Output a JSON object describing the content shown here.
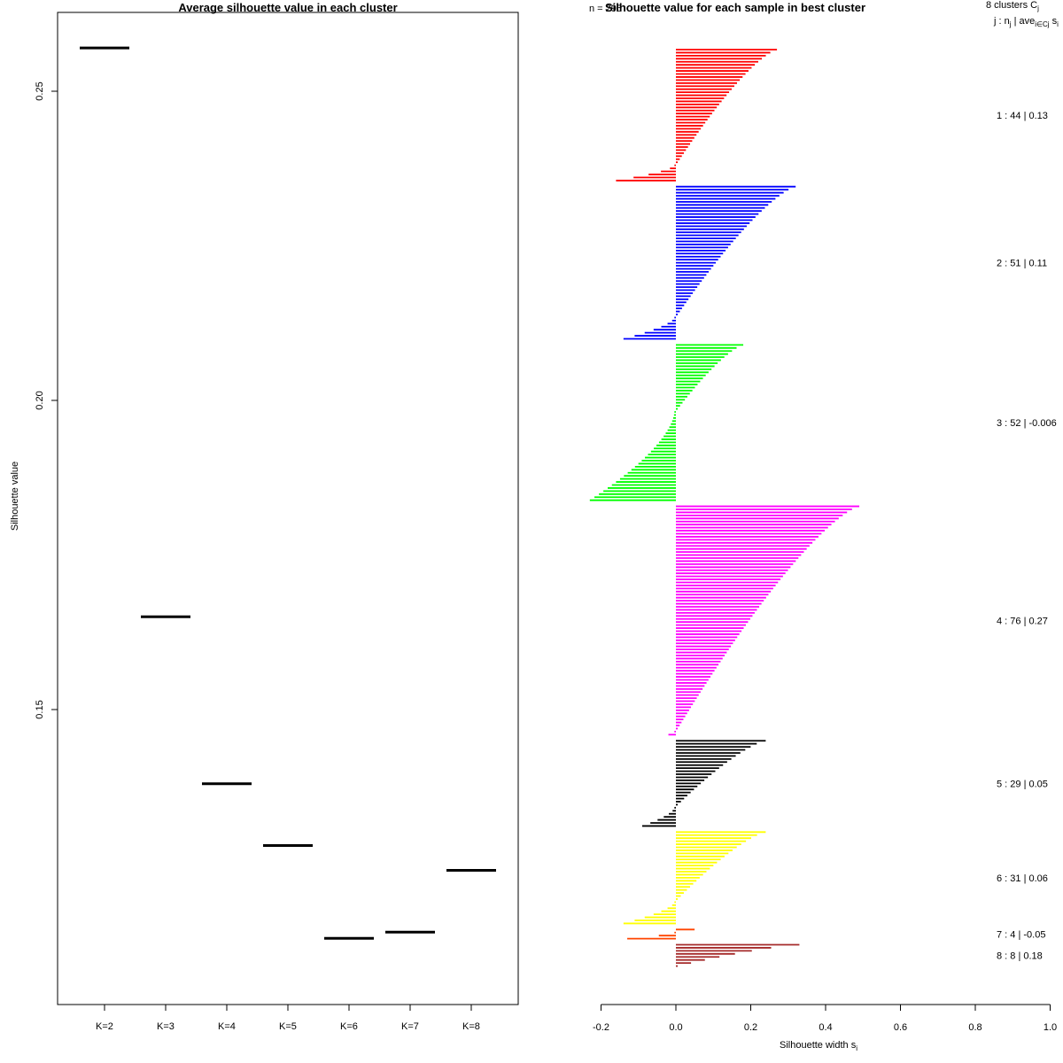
{
  "chart_data": [
    {
      "type": "line",
      "title": "Average silhouette value in each cluster",
      "xlabel": "",
      "ylabel": "Silhouette value",
      "categories": [
        "K=2",
        "K=3",
        "K=4",
        "K=5",
        "K=6",
        "K=7",
        "K=8"
      ],
      "values": [
        0.257,
        0.165,
        0.138,
        0.128,
        0.113,
        0.114,
        0.124
      ],
      "y_ticks": [
        "0.15",
        "0.20",
        "0.25"
      ],
      "ylim": [
        0.108,
        0.263
      ]
    },
    {
      "type": "bar",
      "orientation": "horizontal",
      "title": "Silhouette value for each sample in best cluster",
      "overlap_text": "n = 295",
      "xlabel": "Silhouette width s",
      "xlabel_sub": "i",
      "xlim": [
        -0.2,
        1.0
      ],
      "x_ticks": [
        "-0.2",
        "0.0",
        "0.2",
        "0.4",
        "0.6",
        "0.8",
        "1.0"
      ],
      "legend_header": {
        "line1_text": "8  clusters  C",
        "line1_sub": "j",
        "line2_parts": [
          "j :  n",
          "j",
          " | ave",
          "i∈Cj",
          "  s",
          "i"
        ]
      },
      "clusters": [
        {
          "id": 1,
          "n": 44,
          "avg_text": "0.13",
          "label": "1 :  44  |  0.13",
          "color": "#ff0000",
          "max": 0.27,
          "min": -0.16,
          "neg": 6
        },
        {
          "id": 2,
          "n": 51,
          "avg_text": "0.11",
          "label": "2 :  51  |  0.11",
          "color": "#0000ff",
          "max": 0.32,
          "min": -0.14,
          "neg": 8
        },
        {
          "id": 3,
          "n": 52,
          "avg_text": "-0.006",
          "label": "3 :  52  |  -0.006",
          "color": "#00ff00",
          "max": 0.18,
          "min": -0.23,
          "neg": 30
        },
        {
          "id": 4,
          "n": 76,
          "avg_text": "0.27",
          "label": "4 :  76  |  0.27",
          "color": "#ff00ff",
          "max": 0.49,
          "min": -0.02,
          "neg": 2
        },
        {
          "id": 5,
          "n": 29,
          "avg_text": "0.05",
          "label": "5 :  29  |  0.05",
          "color": "#000000",
          "max": 0.24,
          "min": -0.09,
          "neg": 7
        },
        {
          "id": 6,
          "n": 31,
          "avg_text": "0.06",
          "label": "6 :  31  |  0.06",
          "color": "#ffff00",
          "max": 0.24,
          "min": -0.14,
          "neg": 8
        },
        {
          "id": 7,
          "n": 4,
          "avg_text": "-0.05",
          "label": "7 :   4  |  -0.05",
          "color": "#ff4500",
          "max": 0.05,
          "min": -0.13,
          "neg": 3
        },
        {
          "id": 8,
          "n": 8,
          "avg_text": "0.18",
          "label": "8 :   8  |  0.18",
          "color": "#a52a2a",
          "max": 0.33,
          "min": 0.01,
          "neg": 0
        }
      ]
    }
  ]
}
